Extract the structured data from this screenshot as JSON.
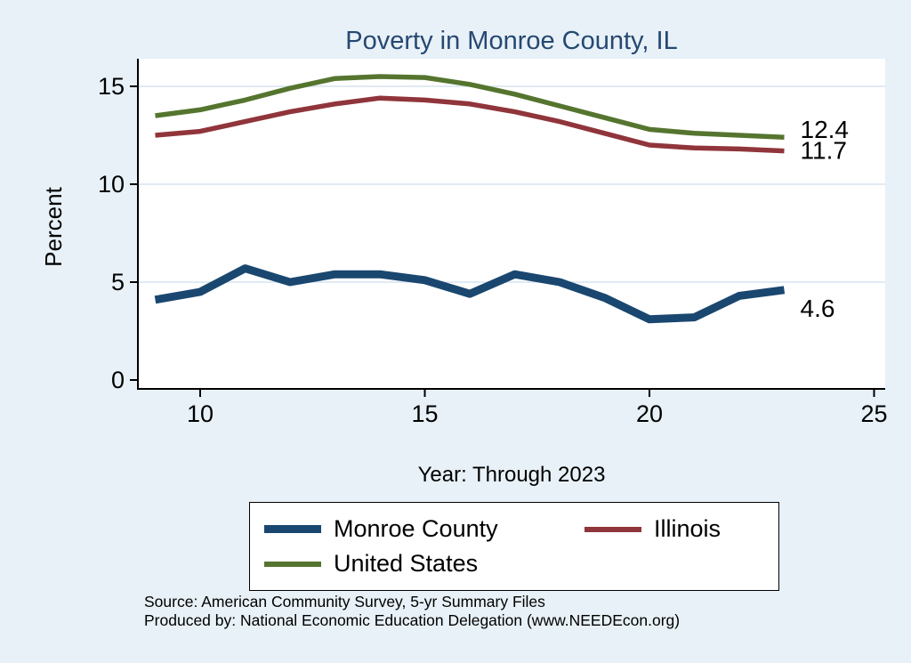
{
  "chart_data": {
    "type": "line",
    "title": "Poverty in Monroe County, IL",
    "xlabel": "Year: Through 2023",
    "ylabel": "Percent",
    "x": [
      9,
      10,
      11,
      12,
      13,
      14,
      15,
      16,
      17,
      18,
      19,
      20,
      21,
      22,
      23
    ],
    "series": [
      {
        "name": "Monroe County",
        "color": "#1a476f",
        "end_label": "4.6",
        "values": [
          4.1,
          4.5,
          5.7,
          5.0,
          5.4,
          5.4,
          5.1,
          4.4,
          5.4,
          5.0,
          4.2,
          3.1,
          3.2,
          4.3,
          4.6
        ]
      },
      {
        "name": "Illinois",
        "color": "#90353b",
        "end_label": "11.7",
        "values": [
          12.5,
          12.7,
          13.2,
          13.7,
          14.1,
          14.4,
          14.3,
          14.1,
          13.7,
          13.2,
          12.6,
          12.0,
          11.85,
          11.8,
          11.7
        ]
      },
      {
        "name": "United States",
        "color": "#55752f",
        "end_label": "12.4",
        "values": [
          13.5,
          13.8,
          14.3,
          14.9,
          15.4,
          15.5,
          15.45,
          15.1,
          14.6,
          14.0,
          13.4,
          12.8,
          12.6,
          12.5,
          12.4
        ]
      }
    ],
    "xlim": [
      8.6,
      25.3
    ],
    "ylim": [
      0,
      16
    ],
    "xticks": [
      10,
      15,
      20,
      25
    ],
    "yticks": [
      0,
      5,
      10,
      15
    ],
    "grid": true,
    "legend_position": "bottom"
  },
  "colors": {
    "background": "#e8f1f7",
    "plot_background": "#ffffff",
    "grid": "#d6e4f0",
    "axis": "#000000",
    "title": "#264872"
  },
  "footer": {
    "source": "Source: American Community Survey, 5-yr Summary Files",
    "produced_by": "Produced by: National Economic Education Delegation (www.NEEDEcon.org)"
  }
}
